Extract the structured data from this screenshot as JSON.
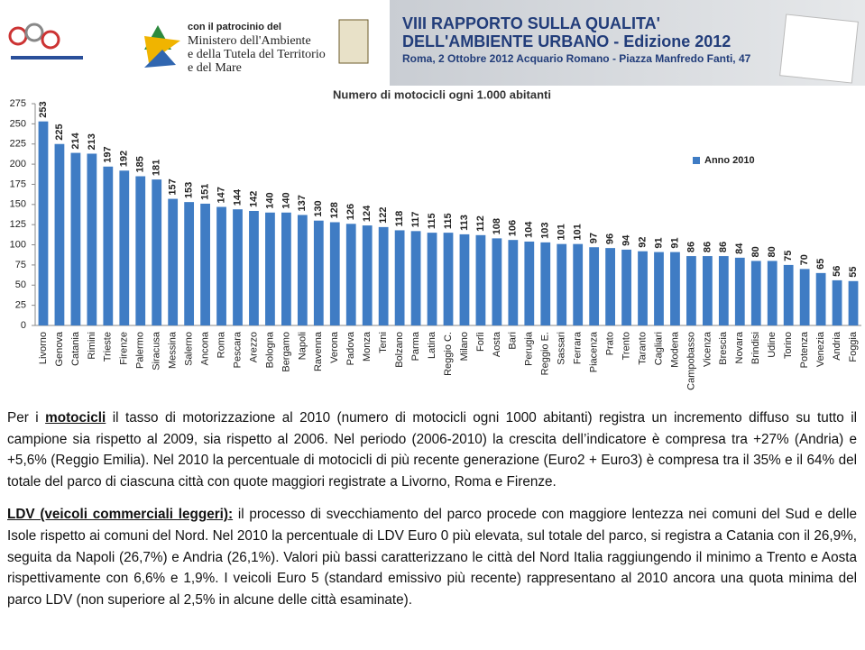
{
  "header": {
    "patronage": [
      "con il patrocinio del",
      "Ministero dell'Ambiente",
      "e della Tutela del Territorio",
      "e del Mare"
    ],
    "banner": [
      "VIII RAPPORTO SULLA QUALITA'",
      "DELL'AMBIENTE URBANO - Edizione 2012",
      "Roma, 2 Ottobre 2012 Acquario Romano - Piazza Manfredo Fanti, 47"
    ]
  },
  "chart_data": {
    "type": "bar",
    "title": "Numero di motocicli ogni 1.000 abitanti",
    "categories": [
      "Livorno",
      "Genova",
      "Catania",
      "Rimini",
      "Trieste",
      "Firenze",
      "Palermo",
      "Siracusa",
      "Messina",
      "Salerno",
      "Ancona",
      "Roma",
      "Pescara",
      "Arezzo",
      "Bologna",
      "Bergamo",
      "Napoli",
      "Ravenna",
      "Verona",
      "Padova",
      "Monza",
      "Terni",
      "Bolzano",
      "Parma",
      "Latina",
      "Reggio C.",
      "Milano",
      "Forlì",
      "Aosta",
      "Bari",
      "Perugia",
      "Reggio E.",
      "Sassari",
      "Ferrara",
      "Piacenza",
      "Prato",
      "Trento",
      "Taranto",
      "Cagliari",
      "Modena",
      "Campobasso",
      "Vicenza",
      "Brescia",
      "Novara",
      "Brindisi",
      "Udine",
      "Torino",
      "Potenza",
      "Venezia",
      "Andria",
      "Foggia"
    ],
    "series": [
      {
        "name": "Anno 2010",
        "color": "#3f7cc4",
        "values": [
          253,
          225,
          214,
          213,
          197,
          192,
          185,
          181,
          157,
          153,
          151,
          147,
          144,
          142,
          140,
          140,
          137,
          130,
          128,
          126,
          124,
          122,
          118,
          117,
          115,
          115,
          113,
          112,
          108,
          106,
          104,
          103,
          101,
          101,
          97,
          96,
          94,
          92,
          91,
          91,
          86,
          86,
          86,
          84,
          80,
          80,
          75,
          70,
          65,
          56,
          55
        ]
      }
    ],
    "ylim": [
      0,
      275
    ],
    "yticks": [
      0,
      25,
      50,
      75,
      100,
      125,
      150,
      175,
      200,
      225,
      250,
      275
    ],
    "grid": false,
    "legend": "right"
  },
  "text": {
    "paragraphs": [
      [
        {
          "text": "Per i "
        },
        {
          "text": "motocicli",
          "emphasis": true
        },
        {
          "text": " il tasso di motorizzazione al 2010 (numero di motocicli ogni 1000 abitanti) registra un incremento diffuso su tutto il campione sia rispetto al 2009, sia rispetto al 2006. Nel periodo (2006-2010) la crescita dell’indicatore è compresa tra +27% (Andria) e +5,6% (Reggio Emilia). Nel 2010 la percentuale di motocicli di più recente generazione (Euro2 + Euro3) è compresa tra il 35% e il 64% del totale del parco di ciascuna città con quote maggiori registrate a Livorno, Roma e Firenze."
        }
      ],
      [
        {
          "text": "LDV (veicoli commerciali leggeri):",
          "emphasis": true
        },
        {
          "text": " il processo di svecchiamento del parco procede con maggiore lentezza nei comuni del Sud e delle Isole rispetto ai comuni del Nord. Nel 2010 la percentuale di LDV Euro 0 più elevata, sul totale del parco, si registra a Catania con il 26,9%, seguita da Napoli (26,7%) e Andria (26,1%). Valori più bassi caratterizzano le città del Nord Italia raggiungendo il minimo a Trento e Aosta rispettivamente con 6,6% e 1,9%. I veicoli Euro 5 (standard emissivo più recente) rappresentano al 2010 ancora una quota minima del parco LDV (non superiore al 2,5% in alcune delle città esaminate)."
        }
      ]
    ]
  }
}
